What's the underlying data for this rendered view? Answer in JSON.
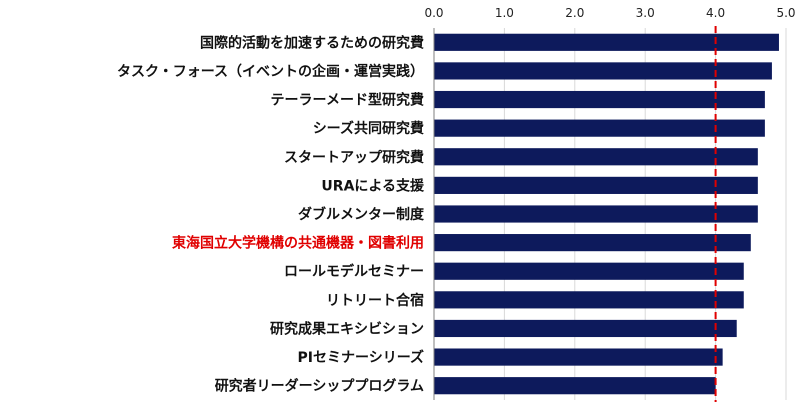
{
  "chart_data": {
    "type": "bar",
    "orientation": "horizontal",
    "x_axis_position": "top",
    "categories": [
      "国際的活動を加速するための研究費",
      "タスク・フォース（イベントの企画・運営実践）",
      "テーラーメード型研究費",
      "シーズ共同研究費",
      "スタートアップ研究費",
      "URAによる支援",
      "ダブルメンター制度",
      "東海国立大学機構の共通機器・図書利用",
      "ロールモデルセミナー",
      "リトリート合宿",
      "研究成果エキシビション",
      "PIセミナーシリーズ",
      "研究者リーダーシッププログラム"
    ],
    "values": [
      4.9,
      4.8,
      4.7,
      4.7,
      4.6,
      4.6,
      4.6,
      4.5,
      4.4,
      4.4,
      4.3,
      4.1,
      4.0
    ],
    "xlim": [
      0,
      5.0
    ],
    "xticks": [
      "0.0",
      "1.0",
      "2.0",
      "3.0",
      "4.0",
      "5.0"
    ],
    "reference_line": {
      "value": 4.0,
      "style": "dashed",
      "color": "#e00000"
    },
    "highlighted_category": "東海国立大学機構の共通機器・図書利用",
    "highlight_color": "#e00000",
    "bar_color": "#0d1a5c",
    "label_color": "#111111",
    "grid": true
  }
}
